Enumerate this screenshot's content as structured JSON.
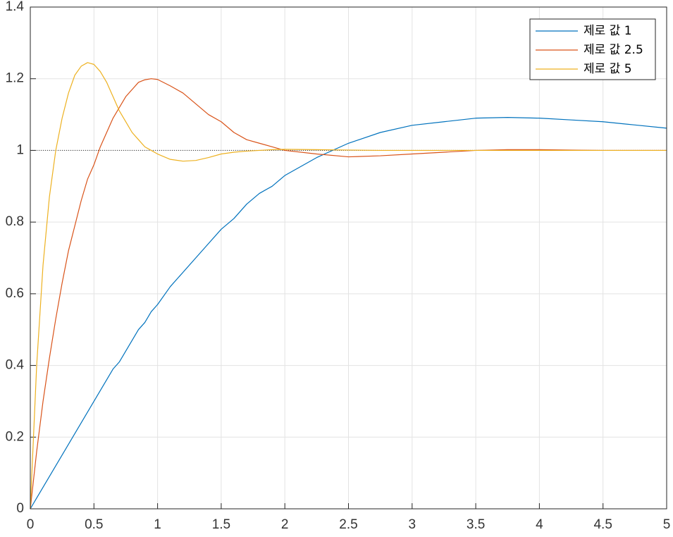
{
  "chart_data": {
    "type": "line",
    "x": [
      0,
      0.05,
      0.1,
      0.15,
      0.2,
      0.25,
      0.3,
      0.35,
      0.4,
      0.45,
      0.5,
      0.55,
      0.6,
      0.65,
      0.7,
      0.75,
      0.8,
      0.85,
      0.9,
      0.95,
      1.0,
      1.1,
      1.2,
      1.3,
      1.4,
      1.5,
      1.6,
      1.7,
      1.8,
      1.9,
      2.0,
      2.25,
      2.5,
      2.75,
      3.0,
      3.25,
      3.5,
      3.75,
      4.0,
      4.25,
      4.5,
      4.75,
      5.0
    ],
    "series": [
      {
        "name": "제로 값 1",
        "color": "#0072BD",
        "values": [
          0,
          0.03,
          0.06,
          0.09,
          0.12,
          0.15,
          0.18,
          0.21,
          0.24,
          0.27,
          0.3,
          0.33,
          0.36,
          0.39,
          0.41,
          0.44,
          0.47,
          0.5,
          0.52,
          0.55,
          0.57,
          0.62,
          0.66,
          0.7,
          0.74,
          0.78,
          0.81,
          0.85,
          0.88,
          0.9,
          0.93,
          0.98,
          1.02,
          1.05,
          1.07,
          1.08,
          1.09,
          1.092,
          1.09,
          1.085,
          1.08,
          1.071,
          1.062
        ]
      },
      {
        "name": "제로 값 2.5",
        "color": "#D95319",
        "values": [
          0,
          0.16,
          0.3,
          0.42,
          0.53,
          0.63,
          0.72,
          0.79,
          0.86,
          0.92,
          0.96,
          1.01,
          1.05,
          1.09,
          1.12,
          1.15,
          1.17,
          1.19,
          1.197,
          1.2,
          1.198,
          1.18,
          1.16,
          1.13,
          1.1,
          1.08,
          1.05,
          1.03,
          1.02,
          1.01,
          1.0,
          0.99,
          0.982,
          0.985,
          0.99,
          0.995,
          1.0,
          1.002,
          1.002,
          1.001,
          1.0,
          1.0,
          1.0
        ]
      },
      {
        "name": "제로 값 5",
        "color": "#EDB120",
        "values": [
          0,
          0.4,
          0.68,
          0.87,
          1.0,
          1.09,
          1.16,
          1.21,
          1.235,
          1.245,
          1.24,
          1.22,
          1.19,
          1.15,
          1.11,
          1.08,
          1.05,
          1.03,
          1.01,
          1.0,
          0.99,
          0.975,
          0.97,
          0.972,
          0.98,
          0.99,
          0.995,
          0.998,
          1.0,
          1.002,
          1.003,
          1.002,
          1.001,
          1.0,
          1.0,
          1.0,
          1.0,
          1.0,
          1.0,
          1.0,
          1.0,
          1.0,
          1.0
        ]
      }
    ],
    "reference_line": 1,
    "xlim": [
      0,
      5
    ],
    "xticks": [
      0,
      0.5,
      1,
      1.5,
      2,
      2.5,
      3,
      3.5,
      4,
      4.5,
      5
    ],
    "ylim": [
      0,
      1.4
    ],
    "yticks": [
      0,
      0.2,
      0.4,
      0.6,
      0.8,
      1,
      1.2,
      1.4
    ],
    "grid": true,
    "legend": "top-right"
  }
}
